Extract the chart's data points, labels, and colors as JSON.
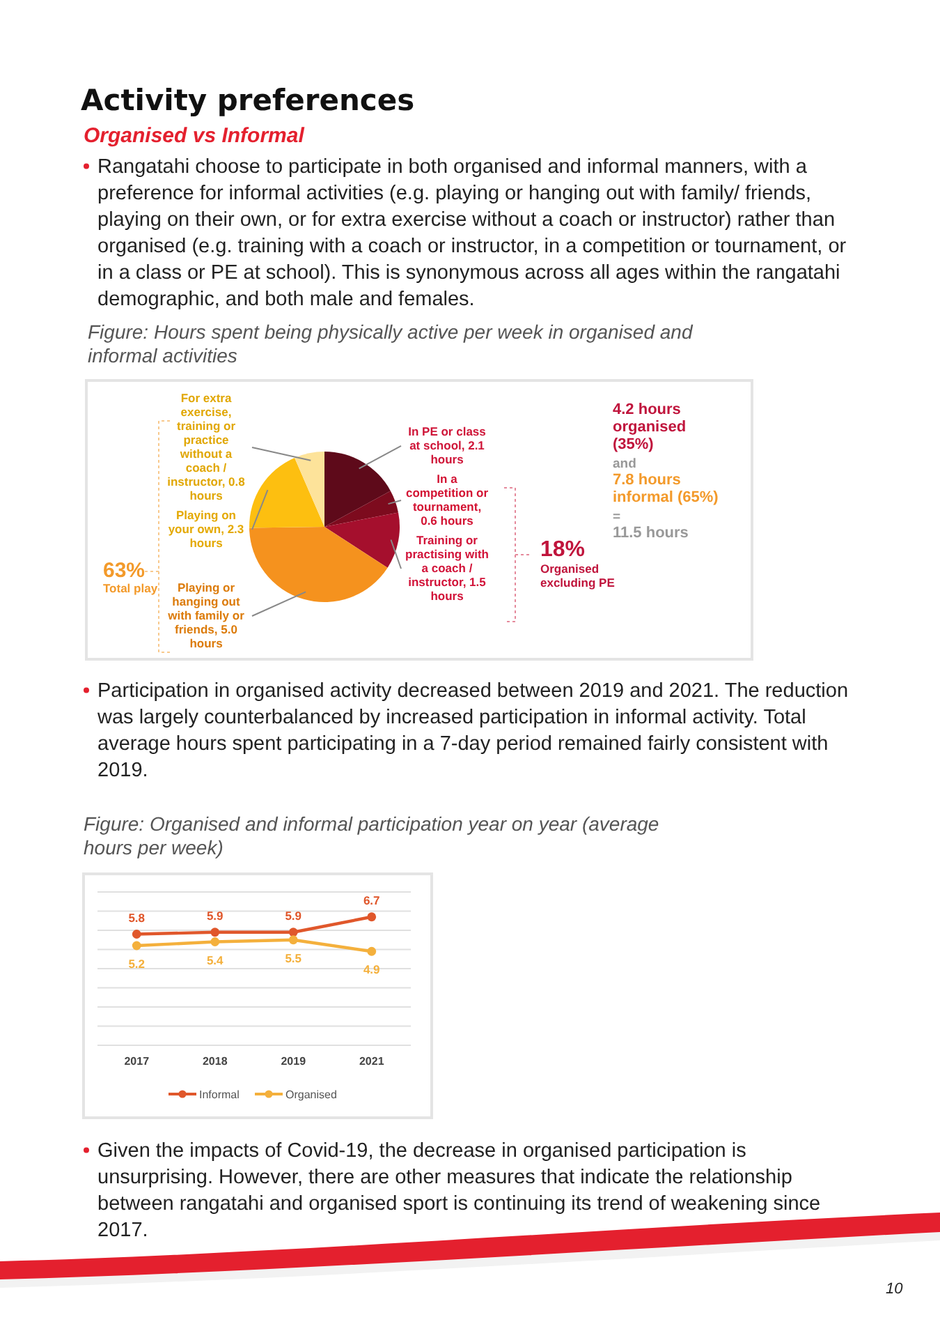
{
  "chart_data": [
    {
      "type": "other",
      "title": "Activity preferences",
      "subtitle": "Organised vs Informal",
      "annotations": [
        "Rangatahi choose to participate in both organised and informal manners, with a preference for informal activities (e.g. playing or hanging out with family/ friends, playing on their own, or for extra exercise without a coach or instructor) rather than organised (e.g. training with a coach or instructor, in a competition or tournament, or in a class or PE at school). This is synonymous across all ages within the rangatahi demographic, and both male and females."
      ]
    },
    {
      "type": "pie",
      "title": "Figure: Hours spent being physically active per week in organised and informal activities",
      "categories": [
        "In PE or class at school, 2.1 hours",
        "In a competition or tournament, 0.6 hours",
        "Training or practising with a coach / instructor, 1.5 hours",
        "Playing or hanging out with family or friends, 5.0 hours",
        "Playing on your own, 2.3 hours",
        "For extra exercise, training or practice without a coach / instructor, 0.8 hours"
      ],
      "values": [
        2.1,
        0.6,
        1.5,
        5.0,
        2.3,
        0.8
      ],
      "colors": [
        "#5e0a1a",
        "#7d0b1e",
        "#a50f2d",
        "#f5921e",
        "#fdbf10",
        "#fde39a"
      ],
      "annotations": [
        "4.2 hours organised (35%)",
        "and",
        "7.8 hours informal (65%)",
        "=",
        "11.5 hours",
        "63%",
        "Total play",
        "18%",
        "Organised excluding PE"
      ]
    },
    {
      "type": "other",
      "annotations": [
        "Participation in organised activity decreased between 2019 and 2021. The reduction was largely counterbalanced by increased participation in informal activity. Total average hours spent participating in a 7-day period remained fairly consistent with 2019."
      ]
    },
    {
      "type": "line",
      "title": "Figure: Organised and informal participation year on year (average hours per week)",
      "categories": [
        "2017",
        "2018",
        "2019",
        "2021"
      ],
      "series": [
        {
          "name": "Informal",
          "color": "#e0572b",
          "values": [
            5.8,
            5.9,
            5.9,
            6.7
          ]
        },
        {
          "name": "Organised",
          "color": "#f4b03c",
          "values": [
            5.2,
            5.4,
            5.5,
            4.9
          ]
        }
      ],
      "ylim": [
        0,
        8
      ],
      "yticks": [
        {
          "value": 0,
          "label": null
        },
        {
          "value": 1,
          "label": null
        },
        {
          "value": 2,
          "label": null
        },
        {
          "value": 3,
          "label": null
        },
        {
          "value": 4,
          "label": null
        },
        {
          "value": 5,
          "label": null
        },
        {
          "value": 6,
          "label": null
        },
        {
          "value": 7,
          "label": null
        },
        {
          "value": 8,
          "label": null
        }
      ],
      "tick_labels": "x",
      "grid": "y",
      "legend": "bottom",
      "marker": "circle",
      "data_labels": true
    },
    {
      "type": "other",
      "annotations": [
        "Given the impacts of Covid-19, the decrease in organised participation is unsurprising. However, there are other measures that indicate the relationship between rangatahi and organised sport is continuing its trend of weakening since 2017.",
        "10"
      ]
    }
  ]
}
